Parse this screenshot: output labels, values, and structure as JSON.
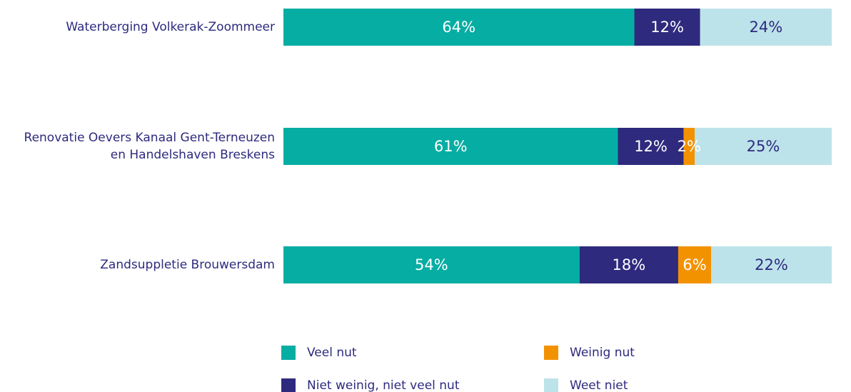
{
  "chart_data": {
    "type": "stacked-bar-horizontal",
    "categories": [
      "Waterberging Volkerak-Zoommeer",
      "Renovatie Oevers Kanaal Gent-Terneuzen\nen Handelshaven Breskens",
      "Zandsuppletie Brouwersdam"
    ],
    "xlim": [
      0,
      100
    ],
    "series": [
      {
        "name": "Veel nut",
        "color": "#06ada3",
        "values": [
          64,
          61,
          54
        ],
        "value_labels": [
          "64%",
          "61%",
          "54%"
        ]
      },
      {
        "name": "Niet weinig, niet veel nut",
        "color": "#2e2a7e",
        "values": [
          12,
          12,
          18
        ],
        "value_labels": [
          "12%",
          "12%",
          "18%"
        ]
      },
      {
        "name": "Weinig nut",
        "color": "#f39200",
        "values": [
          null,
          2,
          6
        ],
        "value_labels": [
          null,
          "2%",
          "6%"
        ]
      },
      {
        "name": "Weet niet",
        "color": "#bde3ea",
        "values": [
          24,
          25,
          22
        ],
        "value_labels": [
          "24%",
          "25%",
          "22%"
        ]
      }
    ],
    "legend": "bottom"
  }
}
